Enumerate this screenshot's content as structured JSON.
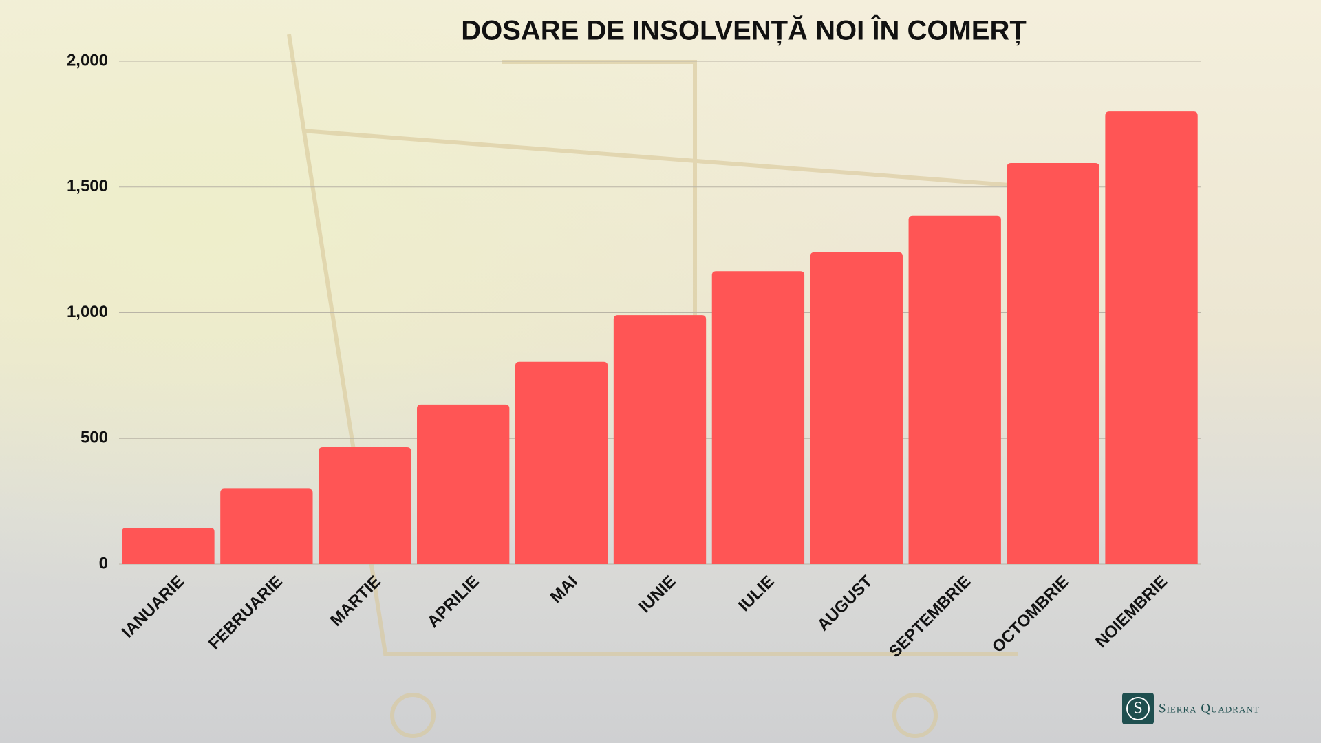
{
  "chart_data": {
    "type": "bar",
    "title": "DOSARE DE INSOLVENȚĂ NOI ÎN COMERȚ",
    "categories": [
      "IANUARIE",
      "FEBRUARIE",
      "MARTIE",
      "APRILIE",
      "MAI",
      "IUNIE",
      "IULIE",
      "AUGUST",
      "SEPTEMBRIE",
      "OCTOMBRIE",
      "NOIEMBRIE"
    ],
    "values": [
      145,
      300,
      465,
      635,
      805,
      990,
      1165,
      1240,
      1385,
      1595,
      1800
    ],
    "color": "#ff5555",
    "ylim": [
      0,
      2000
    ],
    "yticks": [
      0,
      500,
      {
        "value": 1000,
        "label": "1,000"
      },
      {
        "value": 1500,
        "label": "1,500"
      },
      {
        "value": 2000,
        "label": "2,000"
      }
    ],
    "grid": true
  },
  "logo": {
    "letter": "S",
    "text": "Sierra Quadrant"
  }
}
